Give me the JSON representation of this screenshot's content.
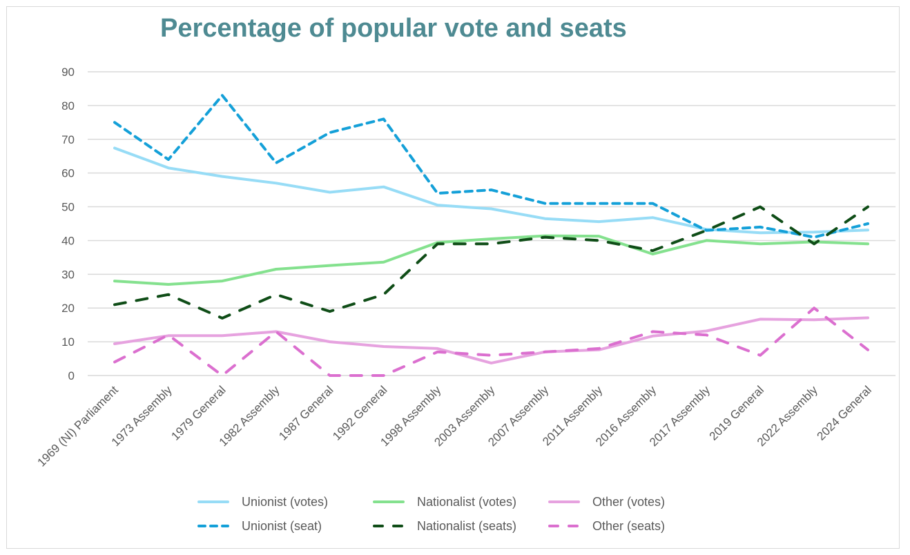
{
  "chart_data": {
    "type": "line",
    "title": "Percentage of popular vote and seats",
    "xlabel": "",
    "ylabel": "",
    "ylim": [
      0,
      90
    ],
    "yticks": [
      0,
      10,
      20,
      30,
      40,
      50,
      60,
      70,
      80,
      90
    ],
    "grid": true,
    "legend_position": "bottom",
    "categories": [
      "1969 (NI) Parliament",
      "1973 Assembly",
      "1979 General",
      "1982 Assembly",
      "1987 General",
      "1992 General",
      "1998 Assembly",
      "2003 Assembly",
      "2007 Assembly",
      "2011 Assembly",
      "2016 Assembly",
      "2017 Assembly",
      "2019 General",
      "2022 Assembly",
      "2024 General"
    ],
    "series": [
      {
        "name": "Unionist (votes)",
        "color": "#97dcf6",
        "style": "solid",
        "values": [
          67.4,
          61.5,
          59,
          57,
          54.3,
          55.9,
          50.5,
          49.4,
          46.5,
          45.6,
          46.8,
          43.3,
          42.3,
          42.5,
          43.1
        ]
      },
      {
        "name": "Nationalist (votes)",
        "color": "#84e18e",
        "style": "solid",
        "values": [
          28,
          27,
          28,
          31.5,
          32.6,
          33.6,
          39.4,
          40.5,
          41.4,
          41.3,
          36,
          40,
          39,
          39.6,
          39
        ]
      },
      {
        "name": "Other (votes)",
        "color": "#e6a2df",
        "style": "solid",
        "values": [
          9.4,
          11.8,
          11.8,
          13,
          10,
          8.6,
          8,
          3.7,
          7,
          7.6,
          11.7,
          13.2,
          16.7,
          16.5,
          17.1
        ]
      },
      {
        "name": "Unionist (seat)",
        "color": "#14a0d8",
        "style": "dash",
        "values": [
          75,
          64,
          83,
          63,
          72,
          76,
          54,
          55,
          51,
          51,
          51,
          43,
          44,
          41,
          45
        ]
      },
      {
        "name": "Nationalist (seats)",
        "color": "#0f4d17",
        "style": "longdash",
        "values": [
          21,
          24,
          17,
          24,
          19,
          24,
          39,
          39,
          41,
          40,
          37,
          43,
          50,
          39,
          50
        ]
      },
      {
        "name": "Other (seats)",
        "color": "#db6fcf",
        "style": "longdash",
        "values": [
          4,
          12,
          0,
          13,
          0,
          0,
          7,
          6,
          7,
          8,
          13,
          12,
          6,
          20,
          7.6
        ]
      }
    ]
  }
}
